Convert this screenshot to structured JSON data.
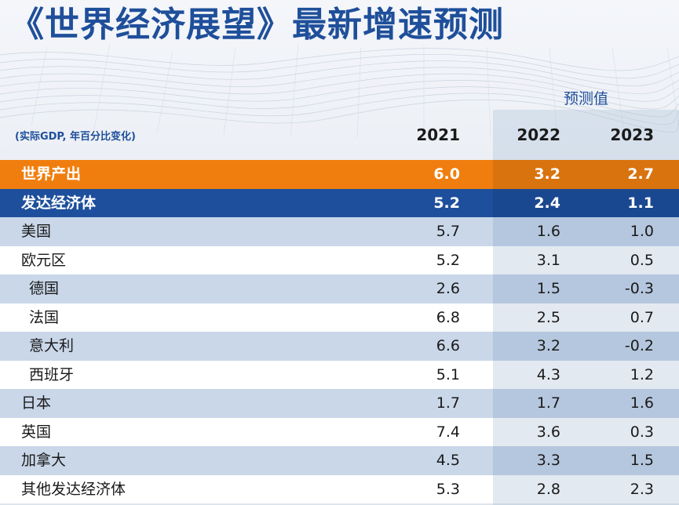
{
  "title": "《世界经济展望》最新增速预测",
  "forecast_label": "预测值",
  "unit_note": "(实际GDP, 年百分比变化)",
  "years": [
    "2021",
    "2022",
    "2023"
  ],
  "colors": {
    "title": "#1f4f9a",
    "world_row": "#f07e0e",
    "advanced_row": "#1d4f9c",
    "stripe": "#c9d7e9"
  },
  "rows": [
    {
      "label": "世界产出",
      "v2021": "6.0",
      "v2022": "3.2",
      "v2023": "2.7"
    },
    {
      "label": "发达经济体",
      "v2021": "5.2",
      "v2022": "2.4",
      "v2023": "1.1"
    },
    {
      "label": "美国",
      "v2021": "5.7",
      "v2022": "1.6",
      "v2023": "1.0"
    },
    {
      "label": "欧元区",
      "v2021": "5.2",
      "v2022": "3.1",
      "v2023": "0.5"
    },
    {
      "label": "德国",
      "v2021": "2.6",
      "v2022": "1.5",
      "v2023": "-0.3"
    },
    {
      "label": "法国",
      "v2021": "6.8",
      "v2022": "2.5",
      "v2023": "0.7"
    },
    {
      "label": "意大利",
      "v2021": "6.6",
      "v2022": "3.2",
      "v2023": "-0.2"
    },
    {
      "label": "西班牙",
      "v2021": "5.1",
      "v2022": "4.3",
      "v2023": "1.2"
    },
    {
      "label": "日本",
      "v2021": "1.7",
      "v2022": "1.7",
      "v2023": "1.6"
    },
    {
      "label": "英国",
      "v2021": "7.4",
      "v2022": "3.6",
      "v2023": "0.3"
    },
    {
      "label": "加拿大",
      "v2021": "4.5",
      "v2022": "3.3",
      "v2023": "1.5"
    },
    {
      "label": "其他发达经济体",
      "v2021": "5.3",
      "v2022": "2.8",
      "v2023": "2.3"
    }
  ]
}
